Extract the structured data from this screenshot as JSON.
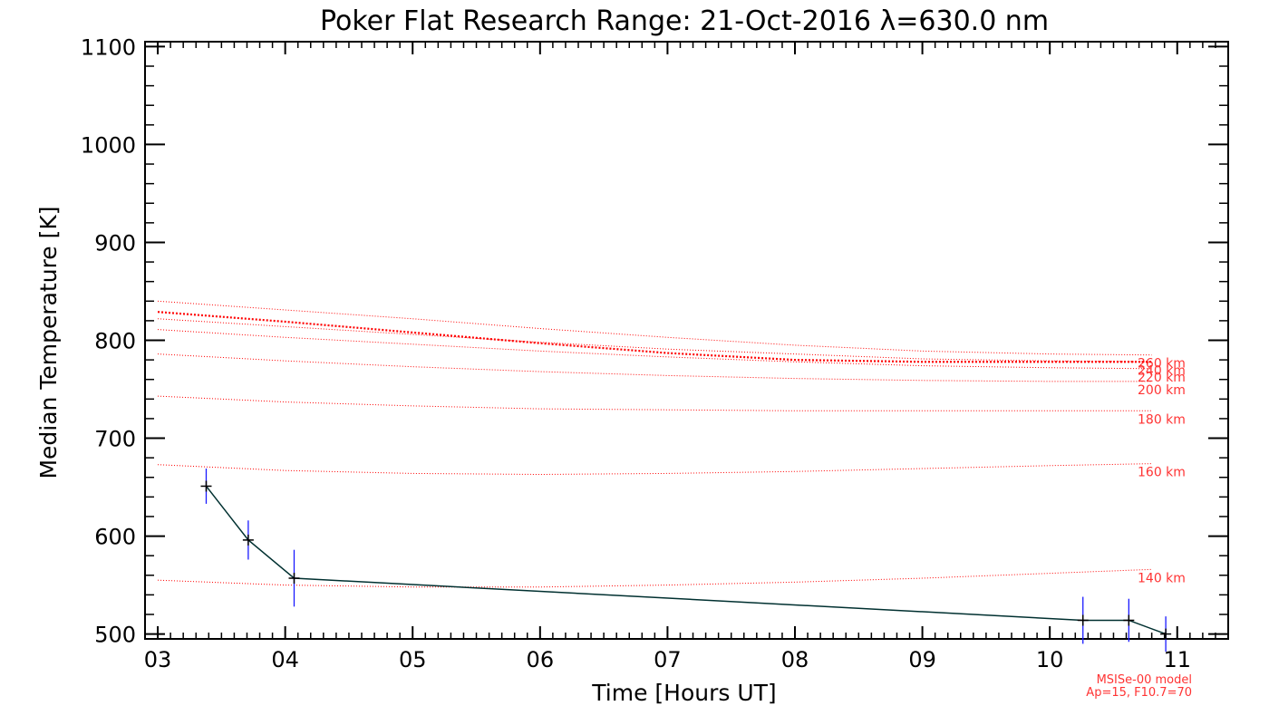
{
  "chart_data": {
    "type": "line",
    "title": "Poker Flat Research Range: 21-Oct-2016 λ=630.0 nm",
    "xlabel": "Time [Hours UT]",
    "ylabel": "Median Temperature [K]",
    "xlim": [
      2.9,
      11.4
    ],
    "ylim": [
      495,
      1105
    ],
    "xticks": [
      3,
      4,
      5,
      6,
      7,
      8,
      9,
      10,
      11
    ],
    "xtick_labels": [
      "03",
      "04",
      "05",
      "06",
      "07",
      "08",
      "09",
      "10",
      "11"
    ],
    "yticks": [
      500,
      600,
      700,
      800,
      900,
      1000,
      1100
    ],
    "ytick_labels": [
      "500",
      "600",
      "700",
      "800",
      "900",
      "1000",
      "1100"
    ],
    "grid": false,
    "series": [
      {
        "name": "Median Temperature",
        "color": "#003030",
        "x": [
          3.38,
          3.71,
          4.07,
          10.26,
          10.62,
          10.91
        ],
        "y": [
          651,
          596,
          557,
          514,
          514,
          500
        ],
        "err": [
          18,
          20,
          29,
          24,
          22,
          18
        ],
        "err_color": "#1a1aff"
      }
    ],
    "model": {
      "name": "MSISe-00 model",
      "params": "Ap=15, F10.7=70",
      "color": "#ff0000",
      "x": [
        3.0,
        4.0,
        5.0,
        6.0,
        7.0,
        8.0,
        9.0,
        10.0,
        10.8
      ],
      "profiles": [
        {
          "label": "140 km",
          "y": [
            555,
            550,
            548,
            548,
            550,
            553,
            557,
            562,
            566
          ]
        },
        {
          "label": "160 km",
          "y": [
            673,
            667,
            664,
            663,
            664,
            666,
            669,
            672,
            674
          ]
        },
        {
          "label": "180 km",
          "y": [
            743,
            737,
            733,
            730,
            729,
            728,
            728,
            728,
            728
          ]
        },
        {
          "label": "200 km",
          "y": [
            786,
            779,
            773,
            768,
            764,
            761,
            759,
            758,
            758
          ]
        },
        {
          "label": "220 km",
          "y": [
            811,
            803,
            796,
            789,
            783,
            778,
            774,
            772,
            771
          ]
        },
        {
          "label": "240 km",
          "y": [
            822,
            814,
            806,
            798,
            791,
            786,
            781,
            779,
            778
          ]
        },
        {
          "label": "260 km",
          "y": [
            840,
            831,
            822,
            812,
            803,
            795,
            789,
            786,
            785
          ]
        }
      ],
      "highlight": {
        "y": [
          829,
          819,
          808,
          797,
          787,
          780,
          778,
          778,
          778
        ]
      }
    }
  }
}
